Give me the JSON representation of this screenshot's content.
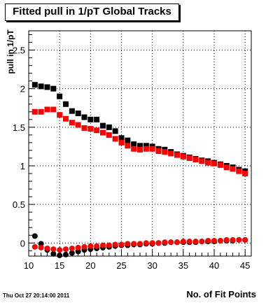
{
  "title": "Fitted pull in 1/pT  Global Tracks",
  "timestamp": "Thu Oct 27 20:14:00 2011",
  "chart_data": {
    "type": "scatter",
    "title": "Fitted pull in 1/pT  Global Tracks",
    "xlabel": "No. of Fit Points",
    "ylabel": "pull in 1/pT",
    "xlim": [
      10,
      46
    ],
    "ylim": [
      -0.17,
      2.75
    ],
    "x_ticks": [
      10,
      15,
      20,
      25,
      30,
      35,
      40,
      45
    ],
    "y_ticks": [
      0,
      0.5,
      1,
      1.5,
      2,
      2.5
    ],
    "y_tick_labels": [
      "0",
      "0.5",
      "1",
      "1.5",
      "2",
      "2.5"
    ],
    "grid": true,
    "x": [
      11,
      12,
      13,
      14,
      15,
      16,
      17,
      18,
      19,
      20,
      21,
      22,
      23,
      24,
      25,
      26,
      27,
      28,
      29,
      30,
      31,
      32,
      33,
      34,
      35,
      36,
      37,
      38,
      39,
      40,
      41,
      42,
      43,
      44,
      45
    ],
    "series": [
      {
        "marker": "square",
        "color": "#000000",
        "values": [
          2.05,
          2.03,
          2.02,
          2.0,
          1.9,
          1.8,
          1.71,
          1.68,
          1.63,
          1.6,
          1.6,
          1.52,
          1.5,
          1.45,
          1.36,
          1.33,
          1.28,
          1.26,
          1.26,
          1.25,
          1.22,
          1.21,
          1.18,
          1.15,
          1.13,
          1.11,
          1.09,
          1.07,
          1.06,
          1.04,
          1.02,
          1.0,
          0.98,
          0.95,
          0.93
        ]
      },
      {
        "marker": "square",
        "color": "#ff0000",
        "values": [
          1.7,
          1.7,
          1.73,
          1.73,
          1.66,
          1.61,
          1.56,
          1.53,
          1.49,
          1.48,
          1.46,
          1.43,
          1.4,
          1.35,
          1.3,
          1.26,
          1.22,
          1.21,
          1.22,
          1.22,
          1.19,
          1.18,
          1.16,
          1.14,
          1.12,
          1.1,
          1.08,
          1.06,
          1.04,
          1.03,
          1.01,
          0.98,
          0.96,
          0.93,
          0.9
        ]
      },
      {
        "marker": "circle",
        "color": "#000000",
        "values": [
          0.09,
          -0.01,
          -0.09,
          -0.14,
          -0.16,
          -0.15,
          -0.13,
          -0.11,
          -0.09,
          -0.08,
          -0.07,
          -0.06,
          -0.05,
          -0.04,
          -0.03,
          -0.03,
          -0.02,
          -0.02,
          -0.01,
          -0.01,
          0.0,
          0.0,
          0.01,
          0.01,
          0.01,
          0.01,
          0.01,
          0.02,
          0.02,
          0.02,
          0.03,
          0.03,
          0.03,
          0.04,
          0.04
        ]
      },
      {
        "marker": "circle",
        "color": "#ff0000",
        "values": [
          -0.05,
          -0.06,
          -0.07,
          -0.08,
          -0.09,
          -0.08,
          -0.07,
          -0.06,
          -0.05,
          -0.04,
          -0.04,
          -0.03,
          -0.03,
          -0.02,
          -0.02,
          -0.01,
          -0.01,
          -0.01,
          0.0,
          0.0,
          0.0,
          0.01,
          0.01,
          0.01,
          0.02,
          0.02,
          0.02,
          0.02,
          0.03,
          0.03,
          0.03,
          0.04,
          0.04,
          0.04,
          0.04
        ]
      }
    ]
  }
}
